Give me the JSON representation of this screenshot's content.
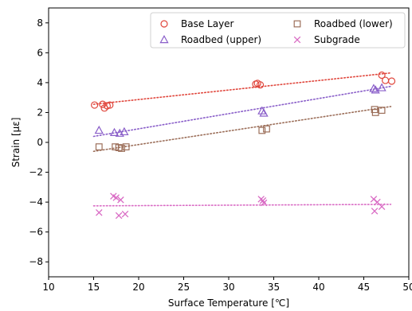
{
  "chart_data": {
    "type": "scatter",
    "title": "",
    "xlabel": "Surface Temperature [℃]",
    "ylabel": "Strain [με]",
    "xlim": [
      10,
      50
    ],
    "ylim": [
      -9,
      9
    ],
    "xticks": [
      10,
      15,
      20,
      25,
      30,
      35,
      40,
      45,
      50
    ],
    "yticks": [
      -8,
      -6,
      -4,
      -2,
      0,
      2,
      4,
      6,
      8
    ],
    "grid": false,
    "legend_position": "top-right",
    "legend_columns": 2,
    "series": [
      {
        "name": "Base Layer",
        "marker": "circle",
        "color": "#e0463c",
        "x": [
          15.1,
          16.0,
          16.2,
          16.5,
          16.8,
          33.0,
          33.2,
          33.5,
          47.0,
          47.4,
          48.1
        ],
        "y": [
          2.5,
          2.55,
          2.3,
          2.45,
          2.5,
          3.9,
          3.95,
          3.85,
          4.5,
          4.15,
          4.1
        ],
        "trend": {
          "x": [
            15,
            48
          ],
          "y": [
            2.55,
            4.65
          ]
        }
      },
      {
        "name": "Roadbed (upper)",
        "marker": "triangle",
        "color": "#8a5fc9",
        "x": [
          15.6,
          17.3,
          17.9,
          18.4,
          33.7,
          33.9,
          46.1,
          46.3,
          47.0
        ],
        "y": [
          0.8,
          0.65,
          0.6,
          0.7,
          2.1,
          1.95,
          3.6,
          3.5,
          3.65
        ],
        "trend": {
          "x": [
            15,
            48
          ],
          "y": [
            0.4,
            3.75
          ]
        }
      },
      {
        "name": "Roadbed (lower)",
        "marker": "square",
        "color": "#9c6f5a",
        "x": [
          15.6,
          17.4,
          17.8,
          18.1,
          18.6,
          33.7,
          34.2,
          46.2,
          46.3,
          47.0
        ],
        "y": [
          -0.3,
          -0.3,
          -0.35,
          -0.4,
          -0.3,
          0.8,
          0.9,
          2.2,
          2.0,
          2.15
        ],
        "trend": {
          "x": [
            15,
            48
          ],
          "y": [
            -0.6,
            2.4
          ]
        }
      },
      {
        "name": "Subgrade",
        "marker": "x",
        "color": "#d96bc4",
        "x": [
          15.6,
          17.2,
          17.5,
          17.8,
          18.0,
          18.5,
          33.6,
          33.8,
          33.9,
          46.1,
          46.2,
          46.5,
          47.0
        ],
        "y": [
          -4.7,
          -3.6,
          -3.7,
          -4.9,
          -3.85,
          -4.8,
          -3.8,
          -3.9,
          -4.05,
          -3.8,
          -4.6,
          -4.0,
          -4.3
        ],
        "trend": {
          "x": [
            15,
            48
          ],
          "y": [
            -4.25,
            -4.15
          ]
        }
      }
    ]
  }
}
